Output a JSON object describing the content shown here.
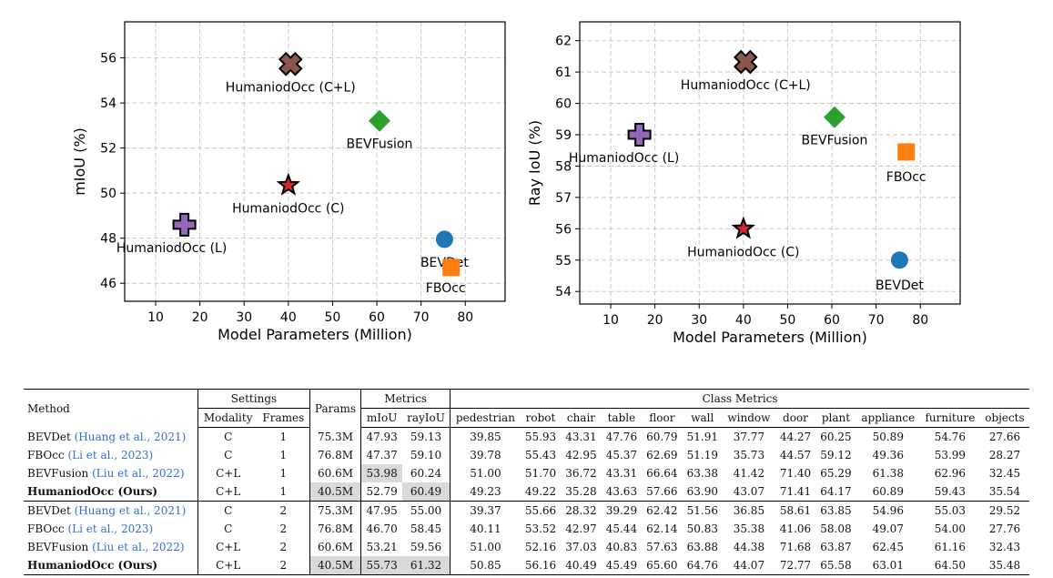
{
  "chart_data": [
    {
      "type": "scatter",
      "xlabel": "Model Parameters (Million)",
      "ylabel": "mIoU (%)",
      "xlim": [
        3,
        89
      ],
      "ylim": [
        45.2,
        57.6
      ],
      "xticks": [
        10,
        20,
        30,
        40,
        50,
        60,
        70,
        80
      ],
      "yticks": [
        46,
        48,
        50,
        52,
        54,
        56
      ],
      "grid": true,
      "points": [
        {
          "label": "HumaniodOcc (C+L)",
          "x": 40.5,
          "y": 55.73,
          "marker": "X",
          "color": "#8c564b"
        },
        {
          "label": "BEVFusion",
          "x": 60.6,
          "y": 53.21,
          "marker": "diamond",
          "color": "#2ca02c"
        },
        {
          "label": "HumaniodOcc (C)",
          "x": 40.0,
          "y": 50.35,
          "marker": "star",
          "color": "#d62728"
        },
        {
          "label": "HumaniodOcc (L)",
          "x": 16.5,
          "y": 48.6,
          "marker": "plus",
          "color": "#9467bd"
        },
        {
          "label": "BEVDet",
          "x": 75.3,
          "y": 47.95,
          "marker": "circle",
          "color": "#1f77b4"
        },
        {
          "label": "FBOcc",
          "x": 76.8,
          "y": 46.7,
          "marker": "square",
          "color": "#ff7f0e"
        }
      ]
    },
    {
      "type": "scatter",
      "xlabel": "Model Parameters (Million)",
      "ylabel": "Ray IoU (%)",
      "xlim": [
        3,
        89
      ],
      "ylim": [
        53.6,
        62.6
      ],
      "xticks": [
        10,
        20,
        30,
        40,
        50,
        60,
        70,
        80
      ],
      "yticks": [
        54,
        55,
        56,
        57,
        58,
        59,
        60,
        61,
        62
      ],
      "grid": true,
      "points": [
        {
          "label": "HumaniodOcc (C+L)",
          "x": 40.5,
          "y": 61.32,
          "marker": "X",
          "color": "#8c564b"
        },
        {
          "label": "BEVFusion",
          "x": 60.6,
          "y": 59.56,
          "marker": "diamond",
          "color": "#2ca02c"
        },
        {
          "label": "HumaniodOcc (L)",
          "x": 16.5,
          "y": 59.0,
          "marker": "plus",
          "color": "#9467bd"
        },
        {
          "label": "FBOcc",
          "x": 76.8,
          "y": 58.45,
          "marker": "square",
          "color": "#ff7f0e"
        },
        {
          "label": "HumaniodOcc (C)",
          "x": 40.0,
          "y": 56.0,
          "marker": "star",
          "color": "#d62728"
        },
        {
          "label": "BEVDet",
          "x": 75.3,
          "y": 55.0,
          "marker": "circle",
          "color": "#1f77b4"
        }
      ]
    }
  ],
  "table": {
    "header": {
      "method": "Method",
      "settings": "Settings",
      "params": "Params",
      "metrics": "Metrics",
      "class_metrics": "Class Metrics",
      "modality": "Modality",
      "frames": "Frames",
      "miou": "mIoU",
      "rayiou": "rayIoU",
      "classes": [
        "pedestrian",
        "robot",
        "chair",
        "table",
        "floor",
        "wall",
        "window",
        "door",
        "plant",
        "appliance",
        "furniture",
        "objects"
      ]
    },
    "rows": [
      {
        "method": "BEVDet",
        "cite": "(Huang et al., 2021)",
        "modality": "C",
        "frames": "1",
        "params": "75.3M",
        "miou": "47.93",
        "rayiou": "59.13",
        "classes": [
          "39.85",
          "55.93",
          "43.31",
          "47.76",
          "60.79",
          "51.91",
          "37.77",
          "44.27",
          "60.25",
          "50.89",
          "54.76",
          "27.66"
        ]
      },
      {
        "method": "FBOcc",
        "cite": "(Li et al., 2023)",
        "modality": "C",
        "frames": "1",
        "params": "76.8M",
        "miou": "47.37",
        "rayiou": "59.10",
        "classes": [
          "39.78",
          "55.43",
          "42.95",
          "45.37",
          "62.69",
          "51.19",
          "35.73",
          "44.57",
          "59.12",
          "49.36",
          "53.99",
          "28.27"
        ]
      },
      {
        "method": "BEVFusion",
        "cite": "(Liu et al., 2022)",
        "modality": "C+L",
        "frames": "1",
        "params": "60.6M",
        "miou": "53.98",
        "rayiou": "60.24",
        "classes": [
          "51.00",
          "51.70",
          "36.72",
          "43.31",
          "66.64",
          "63.38",
          "41.42",
          "71.40",
          "65.29",
          "61.38",
          "62.96",
          "32.45"
        ]
      },
      {
        "method": "HumaniodOcc (Ours)",
        "cite": "",
        "modality": "C+L",
        "frames": "1",
        "params": "40.5M",
        "miou": "52.79",
        "rayiou": "60.49",
        "classes": [
          "49.23",
          "49.22",
          "35.28",
          "43.63",
          "57.66",
          "63.90",
          "43.07",
          "71.41",
          "64.17",
          "60.89",
          "59.43",
          "35.54"
        ]
      },
      {
        "method": "BEVDet",
        "cite": "(Huang et al., 2021)",
        "modality": "C",
        "frames": "2",
        "params": "75.3M",
        "miou": "47.95",
        "rayiou": "55.00",
        "classes": [
          "39.37",
          "55.66",
          "28.32",
          "39.29",
          "62.42",
          "51.56",
          "36.85",
          "58.61",
          "63.85",
          "54.96",
          "55.03",
          "29.52"
        ]
      },
      {
        "method": "FBOcc",
        "cite": "(Li et al., 2023)",
        "modality": "C",
        "frames": "2",
        "params": "76.8M",
        "miou": "46.70",
        "rayiou": "58.45",
        "classes": [
          "40.11",
          "53.52",
          "42.97",
          "45.44",
          "62.14",
          "50.83",
          "35.38",
          "41.06",
          "58.08",
          "49.07",
          "54.00",
          "27.76"
        ]
      },
      {
        "method": "BEVFusion",
        "cite": "(Liu et al., 2022)",
        "modality": "C+L",
        "frames": "2",
        "params": "60.6M",
        "miou": "53.21",
        "rayiou": "59.56",
        "classes": [
          "51.00",
          "52.16",
          "37.03",
          "40.83",
          "57.63",
          "63.88",
          "44.38",
          "71.68",
          "63.87",
          "62.45",
          "61.16",
          "32.43"
        ]
      },
      {
        "method": "HumaniodOcc (Ours)",
        "cite": "",
        "modality": "C+L",
        "frames": "2",
        "params": "40.5M",
        "miou": "55.73",
        "rayiou": "61.32",
        "classes": [
          "50.85",
          "56.16",
          "40.49",
          "45.49",
          "65.60",
          "64.76",
          "44.07",
          "72.77",
          "65.58",
          "63.01",
          "64.50",
          "35.48"
        ]
      }
    ]
  }
}
